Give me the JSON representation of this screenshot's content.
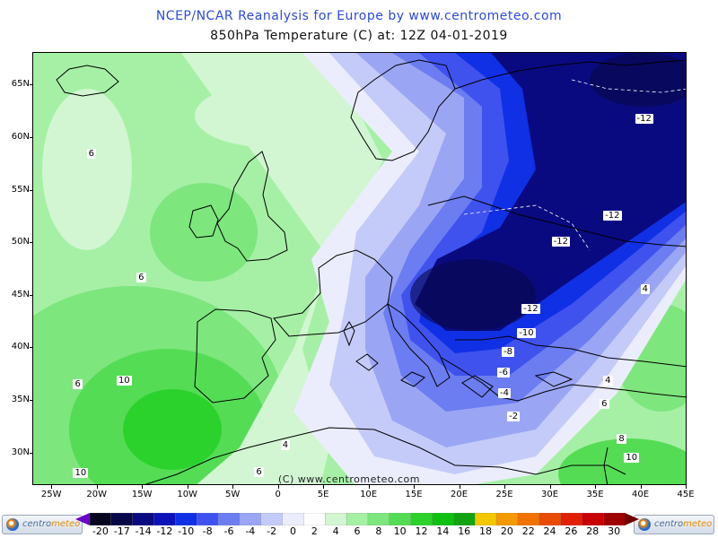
{
  "title": "NCEP/NCAR Reanalysis for Europe by www.centrometeo.com",
  "subtitle": "850hPa Temperature (C) at: 12Z 04-01-2019",
  "copyright": "(C) www.centrometeo.com",
  "logo_left": {
    "part1": "centro",
    "part2": "meteo"
  },
  "logo_right": {
    "part1": "centro",
    "part2": "meteo"
  },
  "map": {
    "lat_range": [
      27,
      68
    ],
    "lon_range": [
      -27,
      45
    ],
    "lat_labels": [
      "65N",
      "60N",
      "55N",
      "50N",
      "45N",
      "40N",
      "35N",
      "30N"
    ],
    "lat_values": [
      65,
      60,
      55,
      50,
      45,
      40,
      35,
      30
    ],
    "lon_labels": [
      "25W",
      "20W",
      "15W",
      "10W",
      "5W",
      "0",
      "5E",
      "10E",
      "15E",
      "20E",
      "25E",
      "30E",
      "35E",
      "40E",
      "45E"
    ],
    "lon_values": [
      -25,
      -20,
      -15,
      -10,
      -5,
      0,
      5,
      10,
      15,
      20,
      25,
      30,
      35,
      40,
      45
    ]
  },
  "contour_labels": [
    {
      "text": "6",
      "lat": 58.4,
      "lon": -20.5
    },
    {
      "text": "6",
      "lat": 46.6,
      "lon": -15
    },
    {
      "text": "6",
      "lat": 36.5,
      "lon": -22
    },
    {
      "text": "10",
      "lat": 36.8,
      "lon": -17.2
    },
    {
      "text": "10",
      "lat": 28,
      "lon": -22
    },
    {
      "text": "4",
      "lat": 30.7,
      "lon": 0.9
    },
    {
      "text": "6",
      "lat": 28.1,
      "lon": -2
    },
    {
      "text": "-12",
      "lat": 61.7,
      "lon": 40
    },
    {
      "text": "-12",
      "lat": 52.5,
      "lon": 36.5
    },
    {
      "text": "-12",
      "lat": 50,
      "lon": 30.8
    },
    {
      "text": "-12",
      "lat": 43.6,
      "lon": 27.5
    },
    {
      "text": "-10",
      "lat": 41.3,
      "lon": 27
    },
    {
      "text": "-8",
      "lat": 39.5,
      "lon": 25.3
    },
    {
      "text": "-6",
      "lat": 37.6,
      "lon": 24.8
    },
    {
      "text": "-4",
      "lat": 35.6,
      "lon": 24.9
    },
    {
      "text": "-2",
      "lat": 33.4,
      "lon": 25.9
    },
    {
      "text": "4",
      "lat": 45.5,
      "lon": 40.6
    },
    {
      "text": "4",
      "lat": 36.8,
      "lon": 36.5
    },
    {
      "text": "6",
      "lat": 34.6,
      "lon": 36.1
    },
    {
      "text": "8",
      "lat": 31.3,
      "lon": 38
    },
    {
      "text": "10",
      "lat": 29.5,
      "lon": 38.8
    }
  ],
  "colorbar": {
    "labels": [
      "-20",
      "-17",
      "-14",
      "-12",
      "-10",
      "-8",
      "-6",
      "-4",
      "-2",
      "0",
      "2",
      "4",
      "6",
      "8",
      "10",
      "12",
      "14",
      "16",
      "18",
      "20",
      "22",
      "24",
      "26",
      "28",
      "30"
    ],
    "colors": [
      "#050520",
      "#07074a",
      "#0a0a80",
      "#0c12b8",
      "#1030e6",
      "#3f52ee",
      "#6b7df0",
      "#9aa6f4",
      "#c4cbf8",
      "#ebedfc",
      "#ffffff",
      "#d2f6d2",
      "#a6f0a6",
      "#7de67d",
      "#55dc55",
      "#2bd22b",
      "#10c010",
      "#12a312",
      "#f2c800",
      "#f29a00",
      "#f07200",
      "#e84a00",
      "#e02000",
      "#c80000",
      "#a00000"
    ],
    "low_arrow_color": "#6a00c8",
    "high_arrow_color": "#700000"
  }
}
